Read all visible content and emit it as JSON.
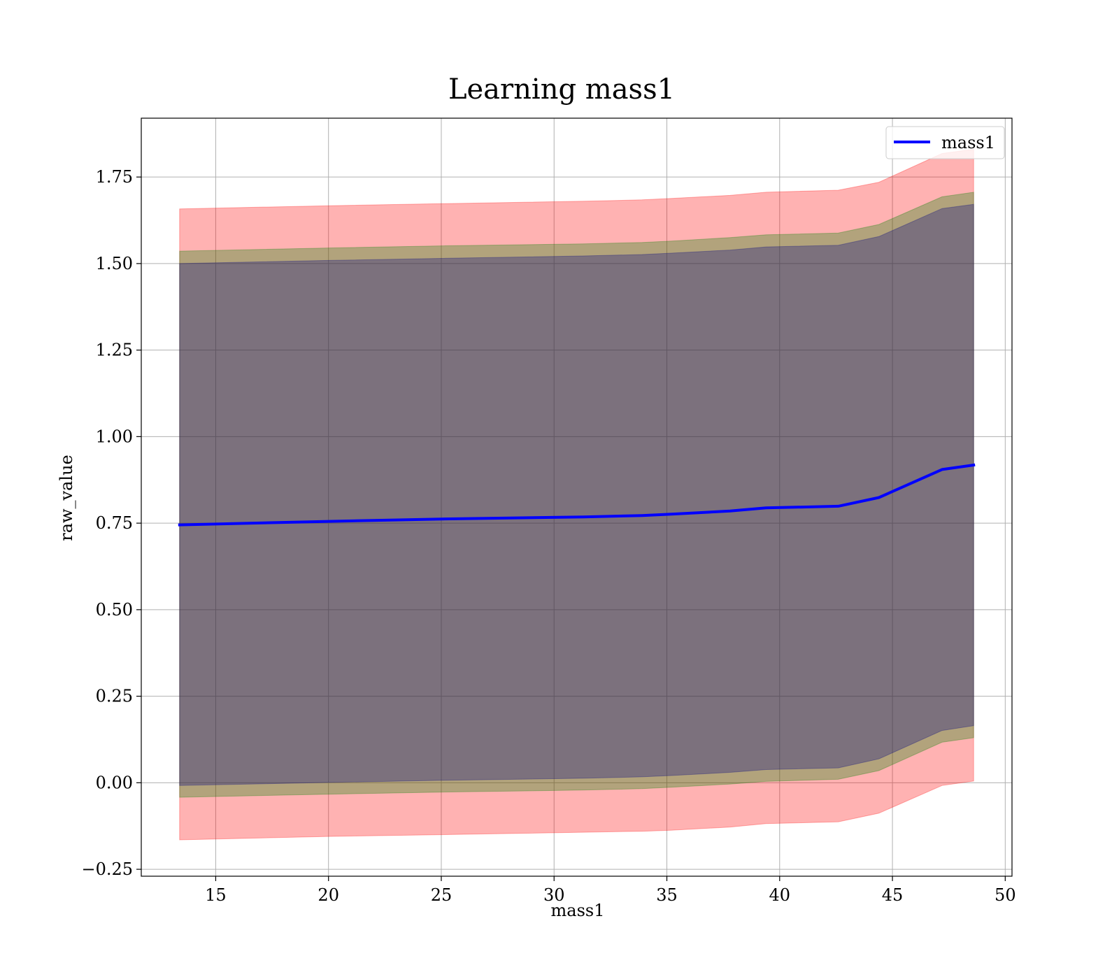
{
  "chart_data": {
    "type": "area",
    "title": "Learning mass1",
    "xlabel": "mass1",
    "ylabel": "raw_value",
    "xlim": [
      11.7,
      50.3
    ],
    "ylim": [
      -0.27,
      1.92
    ],
    "xticks": [
      15,
      20,
      25,
      30,
      35,
      40,
      45,
      50
    ],
    "xtick_labels": [
      "15",
      "20",
      "25",
      "30",
      "35",
      "40",
      "45",
      "50"
    ],
    "yticks": [
      -0.25,
      0.0,
      0.25,
      0.5,
      0.75,
      1.0,
      1.25,
      1.5,
      1.75
    ],
    "ytick_labels": [
      "−0.25",
      "0.00",
      "0.25",
      "0.50",
      "0.75",
      "1.00",
      "1.25",
      "1.50",
      "1.75"
    ],
    "grid": true,
    "legend_position": "top-right",
    "x": [
      13.4,
      20.0,
      25.0,
      31.3,
      33.9,
      35.2,
      37.8,
      39.4,
      42.6,
      44.4,
      47.2,
      48.6
    ],
    "series": [
      {
        "name": "mass1",
        "color": "#0000ff",
        "values": [
          0.745,
          0.755,
          0.762,
          0.768,
          0.772,
          0.776,
          0.785,
          0.794,
          0.799,
          0.824,
          0.905,
          0.918
        ]
      }
    ],
    "bands": [
      {
        "color": "#ff0000",
        "opacity": 0.3,
        "upper": [
          1.658,
          1.667,
          1.673,
          1.68,
          1.684,
          1.688,
          1.697,
          1.706,
          1.712,
          1.735,
          1.818,
          1.83
        ],
        "lower": [
          -0.165,
          -0.155,
          -0.15,
          -0.143,
          -0.14,
          -0.137,
          -0.128,
          -0.118,
          -0.113,
          -0.088,
          -0.008,
          0.005
        ]
      },
      {
        "color": "#008000",
        "opacity": 0.3,
        "upper": [
          1.536,
          1.545,
          1.551,
          1.557,
          1.561,
          1.565,
          1.575,
          1.583,
          1.588,
          1.613,
          1.693,
          1.706
        ],
        "lower": [
          -0.042,
          -0.033,
          -0.027,
          -0.021,
          -0.017,
          -0.013,
          -0.004,
          0.004,
          0.01,
          0.035,
          0.117,
          0.13
        ]
      },
      {
        "color": "#000080",
        "opacity": 0.3,
        "upper": [
          1.5,
          1.509,
          1.515,
          1.522,
          1.526,
          1.53,
          1.539,
          1.548,
          1.553,
          1.578,
          1.659,
          1.671
        ],
        "lower": [
          -0.008,
          0.001,
          0.007,
          0.013,
          0.017,
          0.021,
          0.03,
          0.038,
          0.043,
          0.069,
          0.151,
          0.165
        ]
      }
    ]
  }
}
